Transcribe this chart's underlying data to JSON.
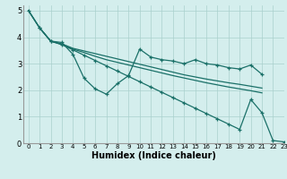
{
  "xlabel": "Humidex (Indice chaleur)",
  "background_color": "#d4eeed",
  "grid_color": "#aad0cc",
  "line_color": "#1a7068",
  "xlim": [
    -0.5,
    23
  ],
  "ylim": [
    0,
    5.2
  ],
  "yticks": [
    0,
    1,
    2,
    3,
    4,
    5
  ],
  "xticks": [
    0,
    1,
    2,
    3,
    4,
    5,
    6,
    7,
    8,
    9,
    10,
    11,
    12,
    13,
    14,
    15,
    16,
    17,
    18,
    19,
    20,
    21,
    22,
    23
  ],
  "line1_x": [
    0,
    1,
    2,
    3,
    4,
    5,
    6,
    7,
    8,
    9,
    10,
    11,
    12,
    13,
    14,
    15,
    16,
    17,
    18,
    19,
    20,
    21
  ],
  "line1_y": [
    5.0,
    4.35,
    3.85,
    3.8,
    3.35,
    2.45,
    2.05,
    1.85,
    2.25,
    2.55,
    3.55,
    3.25,
    3.15,
    3.1,
    3.0,
    3.15,
    3.0,
    2.95,
    2.85,
    2.8,
    2.95,
    2.6
  ],
  "line2_x": [
    0,
    1,
    2,
    3,
    4,
    5,
    6,
    7,
    8,
    9,
    10,
    11,
    12,
    13,
    14,
    15,
    16,
    17,
    18,
    19,
    20,
    21
  ],
  "line2_y": [
    5.0,
    4.35,
    3.85,
    3.72,
    3.55,
    3.42,
    3.28,
    3.15,
    3.05,
    2.95,
    2.85,
    2.75,
    2.65,
    2.55,
    2.46,
    2.37,
    2.28,
    2.2,
    2.12,
    2.05,
    1.98,
    1.9
  ],
  "line3_x": [
    0,
    1,
    2,
    3,
    4,
    5,
    6,
    7,
    8,
    9,
    10,
    11,
    12,
    13,
    14,
    15,
    16,
    17,
    18,
    19,
    20,
    21
  ],
  "line3_y": [
    5.0,
    4.35,
    3.85,
    3.75,
    3.58,
    3.48,
    3.38,
    3.28,
    3.18,
    3.08,
    2.98,
    2.88,
    2.78,
    2.68,
    2.58,
    2.5,
    2.42,
    2.35,
    2.28,
    2.22,
    2.15,
    2.08
  ],
  "line4_x": [
    1,
    2,
    3,
    4,
    5,
    6,
    7,
    8,
    9,
    10,
    11,
    12,
    13,
    14,
    15,
    16,
    17,
    18,
    19,
    20,
    21,
    22,
    23
  ],
  "line4_y": [
    4.35,
    3.85,
    3.72,
    3.52,
    3.32,
    3.12,
    2.92,
    2.72,
    2.52,
    2.32,
    2.12,
    1.92,
    1.72,
    1.52,
    1.32,
    1.12,
    0.92,
    0.72,
    0.52,
    1.65,
    1.15,
    0.1,
    0.05
  ]
}
